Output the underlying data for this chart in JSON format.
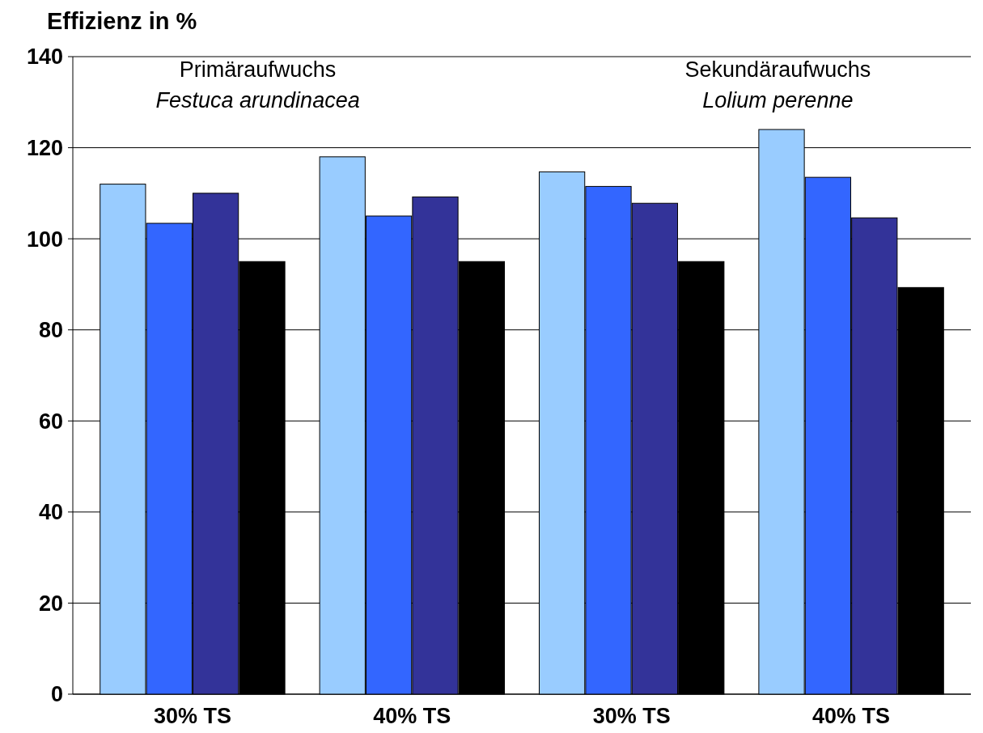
{
  "chart_data": {
    "type": "bar",
    "ylabel": "Effizienz in %",
    "categories": [
      "30% TS",
      "40% TS",
      "30% TS",
      "40% TS"
    ],
    "series": [
      {
        "color": "#99ccff",
        "values": [
          112,
          118,
          114.7,
          124
        ]
      },
      {
        "color": "#3366ff",
        "values": [
          103.4,
          105,
          111.5,
          113.5
        ]
      },
      {
        "color": "#333399",
        "values": [
          110,
          109.2,
          107.8,
          104.6
        ]
      },
      {
        "color": "#000000",
        "values": [
          95,
          95,
          95,
          89.3
        ]
      }
    ],
    "ylim": [
      0,
      140
    ],
    "yticks": [
      0,
      20,
      40,
      60,
      80,
      100,
      120,
      140
    ],
    "grid": "y",
    "annotations": [
      "Primäraufwuchs",
      "Festuca arundinacea",
      "Sekundäraufwuchs",
      "Lolium perenne"
    ]
  }
}
